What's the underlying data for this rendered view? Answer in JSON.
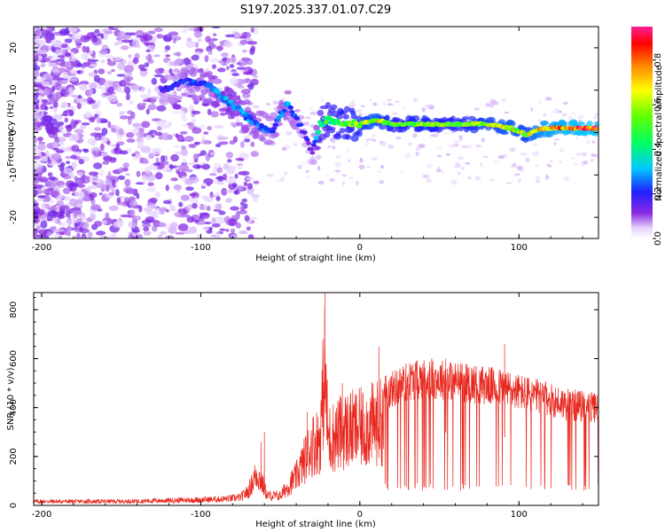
{
  "title": "S197.2025.337.01.07.C29",
  "colors": {
    "snr_line": "#e8281e",
    "axis": "#000000",
    "spectrogram_low": "#8a2be2",
    "background": "#ffffff"
  },
  "chart_data": [
    {
      "type": "heatmap",
      "title": "S197.2025.337.01.07.C29",
      "xlabel": "Height of straight line (km)",
      "ylabel": "Frequency (Hz)",
      "xlim": [
        -205,
        150
      ],
      "ylim": [
        -25,
        25
      ],
      "xticks": [
        -200,
        -100,
        0,
        100
      ],
      "yticks": [
        -20,
        -10,
        0,
        10,
        20
      ],
      "colorbar": {
        "label": "Normalized spectral amplitude",
        "range": [
          0.0,
          0.95
        ],
        "ticks": [
          0.0,
          0.2,
          0.4,
          0.6,
          0.8
        ],
        "tick_labels": [
          "0.0",
          "0.2",
          "0.4",
          "0.6",
          "0.8"
        ]
      },
      "signal_track": {
        "description_points_height_km": [
          -125,
          -110,
          -95,
          -85,
          -75,
          -65,
          -55,
          -50,
          -45,
          -40,
          -35,
          -30,
          -25,
          -20,
          -10,
          0,
          10,
          20,
          40,
          60,
          80,
          95,
          105,
          115,
          130,
          150
        ],
        "frequency_hz": [
          10,
          12,
          11,
          8,
          5,
          2,
          0,
          4,
          7,
          3,
          0,
          -5,
          2,
          3,
          2,
          2,
          3,
          2,
          2,
          2,
          2,
          1,
          -0.5,
          1,
          1,
          1
        ],
        "amplitude": [
          0.2,
          0.25,
          0.3,
          0.35,
          0.3,
          0.3,
          0.25,
          0.3,
          0.3,
          0.25,
          0.2,
          0.15,
          0.5,
          0.55,
          0.6,
          0.65,
          0.75,
          0.6,
          0.65,
          0.6,
          0.7,
          0.75,
          0.7,
          0.85,
          0.9,
          0.95
        ]
      }
    },
    {
      "type": "line",
      "title": "",
      "xlabel": "Height of straight line (km)",
      "ylabel": "SNR (10 * v/v)",
      "xlim": [
        -205,
        150
      ],
      "ylim": [
        0,
        870
      ],
      "xticks": [
        -200,
        -100,
        0,
        100
      ],
      "yticks": [
        0,
        200,
        400,
        600,
        800
      ],
      "series": [
        {
          "name": "SNR",
          "envelope_x": [
            -205,
            -150,
            -100,
            -85,
            -75,
            -70,
            -65,
            -62,
            -58,
            -55,
            -50,
            -45,
            -40,
            -35,
            -30,
            -25,
            -22,
            -20,
            -15,
            -10,
            0,
            5,
            10,
            15,
            20,
            25,
            30,
            40,
            50,
            60,
            70,
            80,
            90,
            100,
            110,
            120,
            130,
            140,
            150
          ],
          "envelope_y": [
            25,
            25,
            35,
            40,
            50,
            90,
            200,
            150,
            60,
            60,
            60,
            120,
            180,
            280,
            380,
            420,
            870,
            420,
            440,
            470,
            480,
            500,
            510,
            530,
            550,
            570,
            590,
            605,
            600,
            590,
            580,
            570,
            560,
            540,
            520,
            500,
            480,
            470,
            460
          ],
          "spikes": [
            {
              "x": -62,
              "y": 260
            },
            {
              "x": -60,
              "y": 300
            },
            {
              "x": -33,
              "y": 380
            },
            {
              "x": -22,
              "y": 870
            },
            {
              "x": -11,
              "y": 500
            },
            {
              "x": 12,
              "y": 650
            },
            {
              "x": 54,
              "y": 600
            },
            {
              "x": 91,
              "y": 660
            }
          ]
        }
      ]
    }
  ]
}
